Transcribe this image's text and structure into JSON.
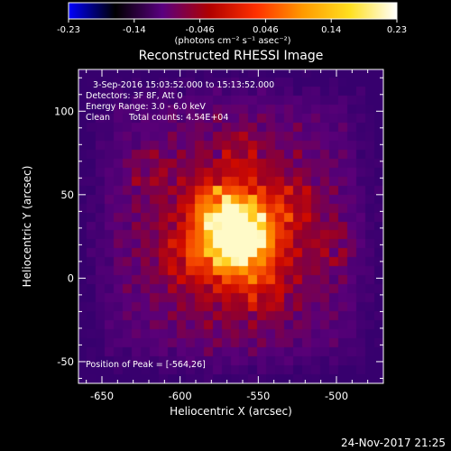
{
  "colorbar": {
    "tick_labels": [
      "-0.23",
      "-0.14",
      "-0.046",
      "0.046",
      "0.14",
      "0.23"
    ],
    "unit_label": "(photons cm⁻² s⁻¹ asec⁻²)",
    "range": [
      -0.23,
      0.23
    ],
    "colormap": [
      "#0000ff",
      "#000000",
      "#5a0080",
      "#b00000",
      "#ff3000",
      "#ff9a00",
      "#ffe020",
      "#ffffff"
    ]
  },
  "chart_data": {
    "type": "heatmap",
    "title": "Reconstructed RHESSI Image",
    "annotations": [
      "3-Sep-2016 15:03:52.000 to 15:13:52.000",
      "Detectors: 3F 8F, Att 0",
      "Energy Range: 3.0 - 6.0 keV",
      "Clean",
      "Total counts: 4.54E+04",
      "Position of Peak = [-564,26]"
    ],
    "xlabel": "Heliocentric X (arcsec)",
    "ylabel": "Heliocentric Y (arcsec)",
    "xlim": [
      -665,
      -470
    ],
    "ylim": [
      -63,
      125
    ],
    "x_ticks": [
      -650,
      -600,
      -550,
      -500
    ],
    "y_ticks": [
      -50,
      0,
      50,
      100
    ],
    "x_tick_labels": [
      "-650",
      "-600",
      "-550",
      "-500"
    ],
    "y_tick_labels": [
      "-50",
      "0",
      "50",
      "100"
    ],
    "peak": {
      "x": -564,
      "y": 26
    }
  },
  "footer": {
    "timestamp": "24-Nov-2017 21:25"
  }
}
